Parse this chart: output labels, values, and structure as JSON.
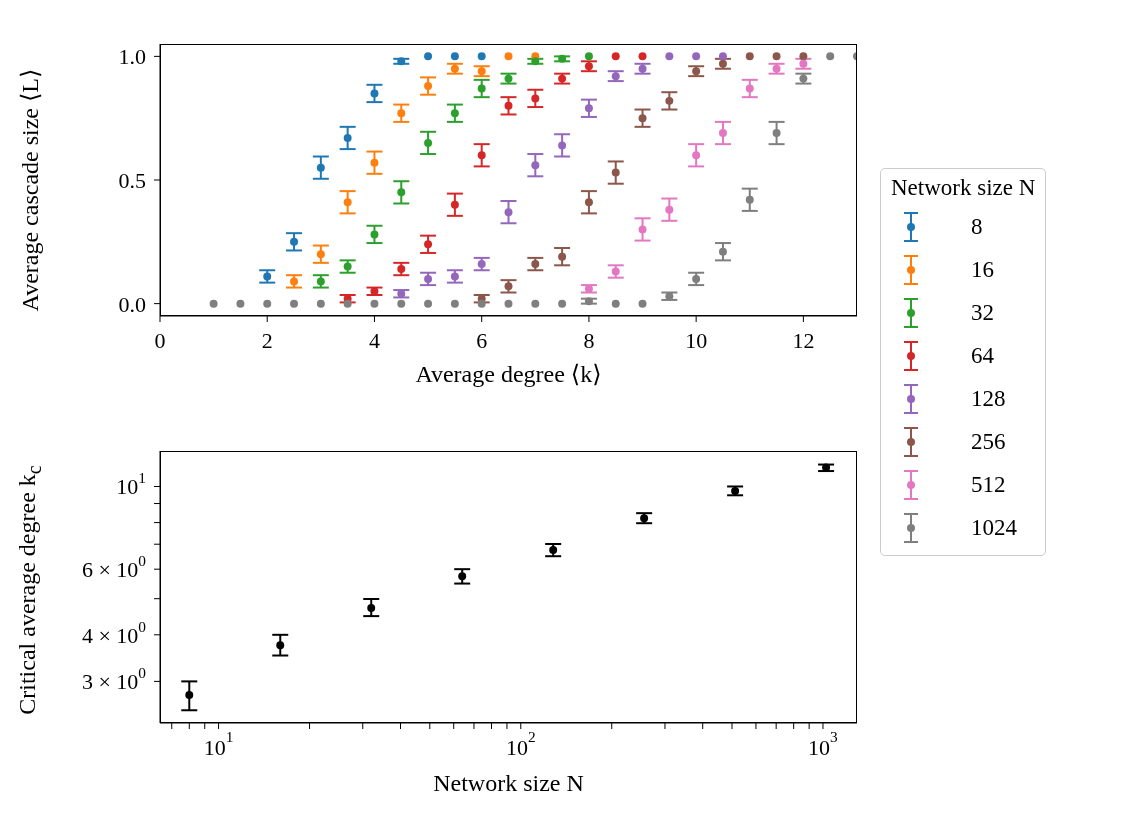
{
  "chart_data": [
    {
      "type": "scatter",
      "xlabel": "Average degree ⟨k⟩",
      "ylabel": "Average cascade size ⟨L⟩",
      "legend_title": "Network size N",
      "legend": "right",
      "marker": "circle",
      "x": [
        1,
        1.5,
        2,
        2.5,
        3,
        3.5,
        4,
        4.5,
        5,
        5.5,
        6,
        6.5,
        7,
        7.5,
        8,
        8.5,
        9,
        9.5,
        10,
        10.5,
        11,
        11.5,
        12,
        12.5,
        13
      ],
      "xlim": [
        0,
        13
      ],
      "xticks": [
        0,
        2,
        4,
        6,
        8,
        10,
        12
      ],
      "ylim": [
        -0.05,
        1.05
      ],
      "yticks": [
        {
          "value": 0,
          "label": "0.0"
        },
        {
          "value": 0.5,
          "label": "0.5"
        },
        {
          "value": 1,
          "label": "1.0"
        }
      ],
      "series": [
        {
          "name": "8",
          "color": "#1f77b4",
          "values": [
            null,
            null,
            0.11,
            0.25,
            0.55,
            0.67,
            0.85,
            0.98,
            1.0,
            1.0,
            1.0,
            null,
            null,
            null,
            null,
            null,
            null,
            null,
            null,
            null,
            null,
            null,
            null,
            null,
            null
          ],
          "errors": [
            null,
            null,
            0.025,
            0.035,
            0.045,
            0.045,
            0.035,
            0.01,
            null,
            null,
            null,
            null,
            null,
            null,
            null,
            null,
            null,
            null,
            null,
            null,
            null,
            null,
            null,
            null,
            null
          ]
        },
        {
          "name": "16",
          "color": "#ff7f0e",
          "values": [
            null,
            null,
            null,
            0.09,
            0.2,
            0.41,
            0.57,
            0.77,
            0.88,
            0.95,
            0.94,
            1.0,
            1.0,
            null,
            null,
            null,
            null,
            null,
            null,
            null,
            null,
            null,
            null,
            null,
            null
          ],
          "errors": [
            null,
            null,
            null,
            0.025,
            0.035,
            0.045,
            0.045,
            0.035,
            0.035,
            0.02,
            0.02,
            null,
            null,
            null,
            null,
            null,
            null,
            null,
            null,
            null,
            null,
            null,
            null,
            null,
            null
          ]
        },
        {
          "name": "32",
          "color": "#2ca02c",
          "values": [
            null,
            null,
            null,
            null,
            0.09,
            0.15,
            0.28,
            0.45,
            0.65,
            0.77,
            0.87,
            0.91,
            0.98,
            0.99,
            1.0,
            null,
            null,
            null,
            null,
            null,
            null,
            null,
            null,
            null,
            null
          ],
          "errors": [
            null,
            null,
            null,
            null,
            0.025,
            0.025,
            0.035,
            0.045,
            0.045,
            0.035,
            0.035,
            0.02,
            0.01,
            0.01,
            null,
            null,
            null,
            null,
            null,
            null,
            null,
            null,
            null,
            null,
            null
          ]
        },
        {
          "name": "64",
          "color": "#d62728",
          "values": [
            null,
            null,
            null,
            null,
            null,
            0.02,
            0.05,
            0.14,
            0.24,
            0.4,
            0.6,
            0.8,
            0.83,
            0.91,
            0.96,
            1.0,
            1.0,
            null,
            null,
            null,
            null,
            null,
            null,
            null,
            null
          ],
          "errors": [
            null,
            null,
            null,
            null,
            null,
            0.015,
            0.015,
            0.025,
            0.035,
            0.045,
            0.045,
            0.035,
            0.035,
            0.02,
            0.02,
            null,
            null,
            null,
            null,
            null,
            null,
            null,
            null,
            null,
            null
          ]
        },
        {
          "name": "128",
          "color": "#9467bd",
          "values": [
            null,
            null,
            null,
            null,
            null,
            null,
            null,
            0.04,
            0.1,
            0.11,
            0.16,
            0.37,
            0.56,
            0.64,
            0.79,
            0.92,
            0.95,
            1.0,
            1.0,
            1.0,
            null,
            null,
            null,
            null,
            null
          ],
          "errors": [
            null,
            null,
            null,
            null,
            null,
            null,
            null,
            0.015,
            0.025,
            0.025,
            0.025,
            0.045,
            0.045,
            0.045,
            0.035,
            0.02,
            0.02,
            null,
            null,
            null,
            null,
            null,
            null,
            null,
            null
          ]
        },
        {
          "name": "256",
          "color": "#8c564b",
          "values": [
            null,
            null,
            null,
            null,
            null,
            null,
            null,
            null,
            null,
            null,
            0.02,
            0.07,
            0.16,
            0.19,
            0.41,
            0.53,
            0.75,
            0.82,
            0.94,
            0.97,
            1.0,
            1.0,
            1.0,
            null,
            null
          ],
          "errors": [
            null,
            null,
            null,
            null,
            null,
            null,
            null,
            null,
            null,
            null,
            0.015,
            0.025,
            0.025,
            0.035,
            0.045,
            0.045,
            0.035,
            0.035,
            0.02,
            0.02,
            null,
            null,
            null,
            null,
            null
          ]
        },
        {
          "name": "512",
          "color": "#e377c2",
          "values": [
            null,
            null,
            null,
            null,
            null,
            null,
            null,
            null,
            null,
            null,
            null,
            null,
            null,
            null,
            0.06,
            0.13,
            0.3,
            0.38,
            0.6,
            0.69,
            0.87,
            0.95,
            0.97,
            null,
            null
          ],
          "errors": [
            null,
            null,
            null,
            null,
            null,
            null,
            null,
            null,
            null,
            null,
            null,
            null,
            null,
            null,
            0.015,
            0.025,
            0.045,
            0.045,
            0.045,
            0.045,
            0.035,
            0.02,
            0.02,
            null,
            null
          ]
        },
        {
          "name": "1024",
          "color": "#7f7f7f",
          "values": [
            0,
            0,
            0,
            0,
            0,
            0,
            0,
            0,
            0,
            0,
            0,
            0,
            0,
            0,
            0.01,
            0,
            0,
            0.03,
            0.1,
            0.21,
            0.42,
            0.69,
            0.91,
            1.0,
            1.0
          ],
          "errors": [
            null,
            null,
            null,
            null,
            null,
            null,
            null,
            null,
            null,
            null,
            null,
            null,
            null,
            null,
            0.01,
            null,
            null,
            0.015,
            0.025,
            0.035,
            0.045,
            0.045,
            0.02,
            null,
            null
          ]
        }
      ]
    },
    {
      "type": "scatter",
      "xlabel": "Network size N",
      "ylabel": "Critical average degree k$_{c}$",
      "log": "xy",
      "marker": "circle",
      "color": "#000000",
      "x": [
        8,
        16,
        32,
        64,
        128,
        256,
        512,
        1024
      ],
      "values": [
        2.76,
        3.75,
        4.72,
        5.74,
        6.75,
        8.22,
        9.73,
        11.25
      ],
      "errors": [
        [
          2.51,
          3.0
        ],
        [
          3.52,
          4.0
        ],
        [
          4.49,
          4.99
        ],
        [
          5.49,
          6.0
        ],
        [
          6.5,
          7.01
        ],
        [
          7.97,
          8.48
        ],
        [
          9.47,
          10.0
        ],
        [
          11.0,
          11.45
        ]
      ],
      "xlim": [
        6.4,
        1296
      ],
      "xticks": [
        {
          "value": 7,
          "label": null
        },
        {
          "value": 8,
          "label": null
        },
        {
          "value": 9,
          "label": null
        },
        {
          "value": 10,
          "label": "10$^{1}$"
        },
        {
          "value": 20,
          "label": null
        },
        {
          "value": 30,
          "label": null
        },
        {
          "value": 40,
          "label": null
        },
        {
          "value": 50,
          "label": null
        },
        {
          "value": 60,
          "label": null
        },
        {
          "value": 70,
          "label": null
        },
        {
          "value": 80,
          "label": null
        },
        {
          "value": 90,
          "label": null
        },
        {
          "value": 100,
          "label": "10$^{2}$"
        },
        {
          "value": 200,
          "label": null
        },
        {
          "value": 300,
          "label": null
        },
        {
          "value": 400,
          "label": null
        },
        {
          "value": 500,
          "label": null
        },
        {
          "value": 600,
          "label": null
        },
        {
          "value": 700,
          "label": null
        },
        {
          "value": 800,
          "label": null
        },
        {
          "value": 900,
          "label": null
        },
        {
          "value": 1000,
          "label": "10$^{3}$"
        }
      ],
      "ylim": [
        2.32,
        12.45
      ],
      "yticks": [
        {
          "value": 3,
          "label": "3 × 10$^{0}$"
        },
        {
          "value": 4,
          "label": "4 × 10$^{0}$"
        },
        {
          "value": 5,
          "label": null
        },
        {
          "value": 6,
          "label": "6 × 10$^{0}$"
        },
        {
          "value": 7,
          "label": null
        },
        {
          "value": 8,
          "label": null
        },
        {
          "value": 9,
          "label": null
        },
        {
          "value": 10,
          "label": "10$^{1}$"
        }
      ]
    }
  ]
}
